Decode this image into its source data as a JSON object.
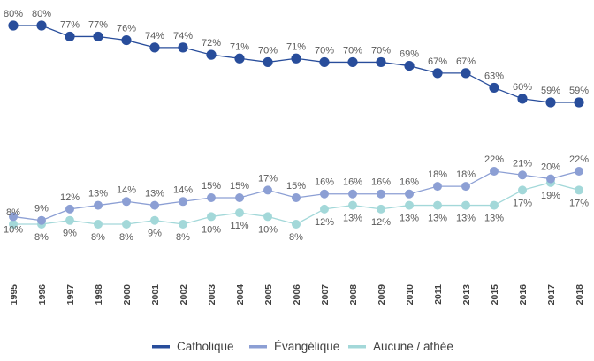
{
  "chart_data": {
    "type": "line",
    "title": "",
    "xlabel": "",
    "ylabel": "",
    "ylim": [
      0,
      85
    ],
    "grid": false,
    "legend_position": "bottom",
    "categories": [
      "1995",
      "1996",
      "1997",
      "1998",
      "2000",
      "2001",
      "2002",
      "2003",
      "2004",
      "2005",
      "2006",
      "2007",
      "2008",
      "2009",
      "2010",
      "2011",
      "2013",
      "2015",
      "2016",
      "2017",
      "2018"
    ],
    "series": [
      {
        "name": "Catholique",
        "color": "#284d9b",
        "labels_above": true,
        "values": [
          80,
          80,
          77,
          77,
          76,
          74,
          74,
          72,
          71,
          70,
          71,
          70,
          70,
          70,
          69,
          67,
          67,
          63,
          60,
          59,
          59
        ]
      },
      {
        "name": "Évangélique",
        "color": "#8c9fd4",
        "values": [
          10,
          9,
          12,
          13,
          14,
          13,
          14,
          15,
          15,
          17,
          15,
          16,
          16,
          16,
          16,
          18,
          18,
          22,
          21,
          20,
          22
        ]
      },
      {
        "name": "Aucune / athée",
        "color": "#a3d8d9",
        "values": [
          8,
          8,
          9,
          8,
          8,
          9,
          8,
          10,
          11,
          10,
          8,
          12,
          13,
          12,
          13,
          13,
          13,
          13,
          17,
          19,
          17
        ]
      }
    ],
    "labels_lower": {
      "evangelique_above": [
        false,
        true,
        true,
        true,
        true,
        true,
        true,
        true,
        true,
        true,
        true,
        true,
        true,
        true,
        true,
        true,
        true,
        true,
        true,
        true,
        true
      ],
      "aucune_above": [
        true,
        false,
        false,
        false,
        false,
        false,
        false,
        false,
        false,
        false,
        false,
        false,
        false,
        false,
        false,
        false,
        false,
        false,
        false,
        false,
        false
      ]
    }
  }
}
